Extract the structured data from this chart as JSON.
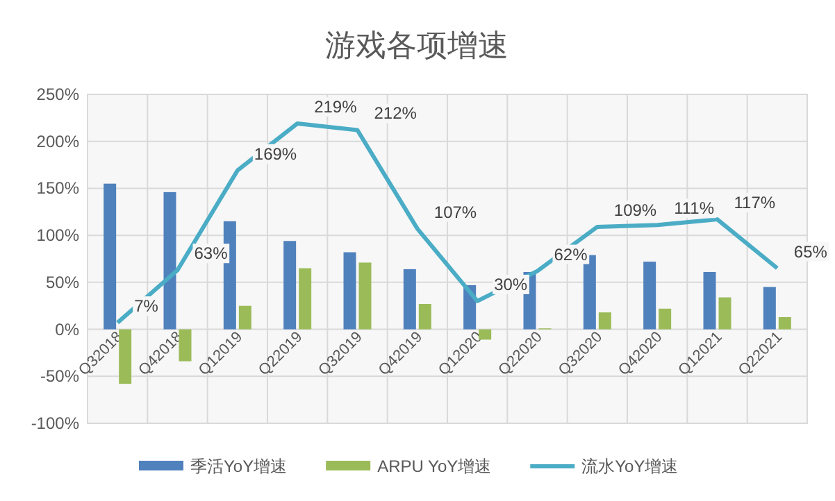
{
  "chart_data": {
    "type": "bar",
    "title": "游戏各项增速",
    "categories": [
      "Q32018",
      "Q42018",
      "Q12019",
      "Q22019",
      "Q32019",
      "Q42019",
      "Q12020",
      "Q22020",
      "Q32020",
      "Q42020",
      "Q12021",
      "Q22021"
    ],
    "series": [
      {
        "name": "季活YoY增速",
        "color": "#4f81bd",
        "values": [
          155,
          146,
          115,
          94,
          82,
          64,
          47,
          61,
          79,
          72,
          61,
          45
        ]
      },
      {
        "name": "ARPU YoY增速",
        "color": "#9bbb59",
        "values": [
          -58,
          -34,
          25,
          65,
          71,
          27,
          -11,
          1,
          18,
          22,
          34,
          13
        ]
      },
      {
        "name": "流水YoY增速",
        "type": "line",
        "color": "#4bacc6",
        "value_labels": [
          "7%",
          "63%",
          "169%",
          "219%",
          "212%",
          "107%",
          "30%",
          "62%",
          "109%",
          "111%",
          "117%",
          "65%"
        ],
        "values": [
          7,
          63,
          169,
          219,
          212,
          107,
          30,
          62,
          109,
          111,
          117,
          65
        ]
      }
    ],
    "ylim": [
      -100,
      250
    ],
    "yticks": [
      {
        "value": -100,
        "label": "-100%"
      },
      {
        "value": -50,
        "label": "-50%"
      },
      {
        "value": 0,
        "label": "0%"
      },
      {
        "value": 50,
        "label": "50%"
      },
      {
        "value": 100,
        "label": "100%"
      },
      {
        "value": 150,
        "label": "150%"
      },
      {
        "value": 200,
        "label": "200%"
      },
      {
        "value": 250,
        "label": "250%"
      }
    ],
    "grid": true,
    "legend": "bottom"
  }
}
